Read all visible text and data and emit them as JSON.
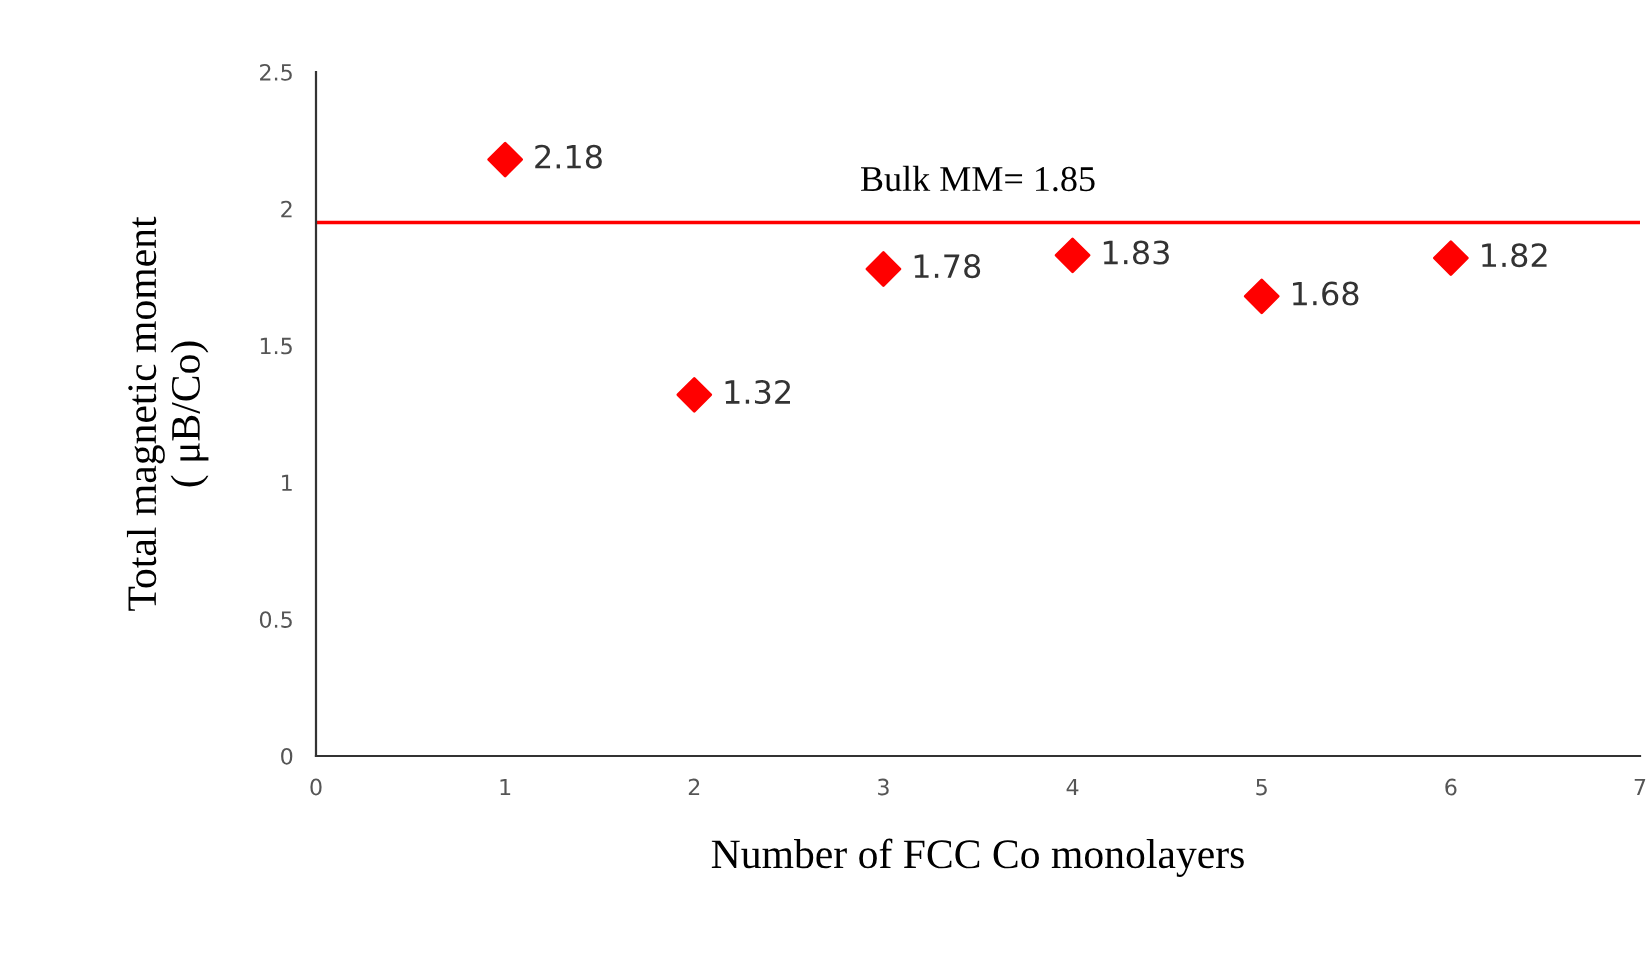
{
  "chart_data": {
    "type": "scatter",
    "xlabel": "Number of FCC Co monolayers",
    "ylabel": "Total magnetic moment\n( μB/Co)",
    "x": [
      1,
      2,
      3,
      4,
      5,
      6
    ],
    "series": [
      {
        "color": "#ff0000",
        "values": [
          2.18,
          1.32,
          1.78,
          1.83,
          1.68,
          1.82
        ]
      }
    ],
    "xlim": [
      0,
      7
    ],
    "xticks": [
      0,
      1,
      2,
      3,
      4,
      5,
      6,
      7
    ],
    "ylim": [
      0,
      2.5
    ],
    "yticks": [
      0,
      0.5,
      1,
      1.5,
      2,
      2.5
    ],
    "ref_lines": [
      {
        "axis": "y",
        "value": 1.95,
        "color": "#ff0000"
      }
    ],
    "annotations": [
      "Bulk MM= 1.85"
    ],
    "marker": "diamond",
    "data_labels": true,
    "grid": false,
    "legend": false
  }
}
